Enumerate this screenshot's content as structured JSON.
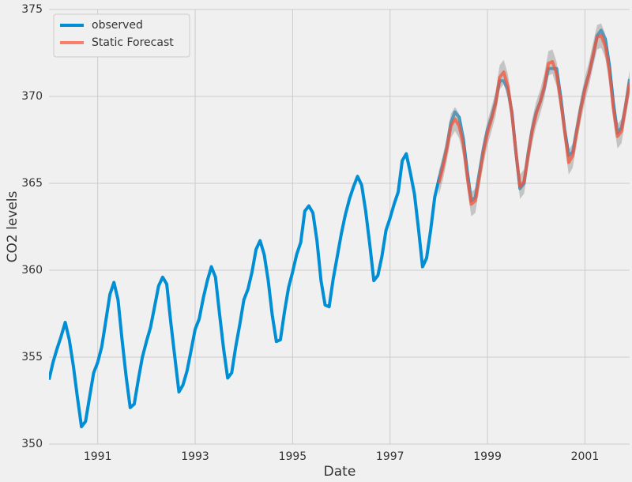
{
  "chart_data": {
    "type": "line",
    "xlabel": "Date",
    "ylabel": "CO2 levels",
    "x": [
      1990,
      1990.083,
      1990.167,
      1990.25,
      1990.333,
      1990.417,
      1990.5,
      1990.583,
      1990.667,
      1990.75,
      1990.833,
      1990.917,
      1991,
      1991.083,
      1991.167,
      1991.25,
      1991.333,
      1991.417,
      1991.5,
      1991.583,
      1991.667,
      1991.75,
      1991.833,
      1991.917,
      1992,
      1992.083,
      1992.167,
      1992.25,
      1992.333,
      1992.417,
      1992.5,
      1992.583,
      1992.667,
      1992.75,
      1992.833,
      1992.917,
      1993,
      1993.083,
      1993.167,
      1993.25,
      1993.333,
      1993.417,
      1993.5,
      1993.583,
      1993.667,
      1993.75,
      1993.833,
      1993.917,
      1994,
      1994.083,
      1994.167,
      1994.25,
      1994.333,
      1994.417,
      1994.5,
      1994.583,
      1994.667,
      1994.75,
      1994.833,
      1994.917,
      1995,
      1995.083,
      1995.167,
      1995.25,
      1995.333,
      1995.417,
      1995.5,
      1995.583,
      1995.667,
      1995.75,
      1995.833,
      1995.917,
      1996,
      1996.083,
      1996.167,
      1996.25,
      1996.333,
      1996.417,
      1996.5,
      1996.583,
      1996.667,
      1996.75,
      1996.833,
      1996.917,
      1997,
      1997.083,
      1997.167,
      1997.25,
      1997.333,
      1997.417,
      1997.5,
      1997.583,
      1997.667,
      1997.75,
      1997.833,
      1997.917,
      1998,
      1998.083,
      1998.167,
      1998.25,
      1998.333,
      1998.417,
      1998.5,
      1998.583,
      1998.667,
      1998.75,
      1998.833,
      1998.917,
      1999,
      1999.083,
      1999.167,
      1999.25,
      1999.333,
      1999.417,
      1999.5,
      1999.583,
      1999.667,
      1999.75,
      1999.833,
      1999.917,
      2000,
      2000.083,
      2000.167,
      2000.25,
      2000.333,
      2000.417,
      2000.5,
      2000.583,
      2000.667,
      2000.75,
      2000.833,
      2000.917,
      2001,
      2001.083,
      2001.167,
      2001.25,
      2001.333,
      2001.417,
      2001.5,
      2001.583,
      2001.667,
      2001.75,
      2001.833,
      2001.917
    ],
    "series": [
      {
        "name": "observed",
        "color": "#008fd5",
        "values": [
          353.7,
          354.7,
          355.5,
          356.2,
          357.0,
          356.0,
          354.5,
          352.7,
          351.0,
          351.3,
          352.7,
          354.1,
          354.7,
          355.6,
          357.1,
          358.6,
          359.3,
          358.3,
          356.0,
          353.9,
          352.1,
          352.3,
          353.7,
          355.0,
          355.9,
          356.7,
          357.9,
          359.1,
          359.6,
          359.2,
          357.0,
          355.0,
          353.0,
          353.4,
          354.2,
          355.4,
          356.6,
          357.2,
          358.4,
          359.4,
          360.2,
          359.6,
          357.5,
          355.5,
          353.8,
          354.1,
          355.6,
          356.9,
          358.3,
          358.9,
          359.9,
          361.2,
          361.7,
          360.9,
          359.4,
          357.4,
          355.9,
          356.0,
          357.6,
          359.0,
          359.9,
          360.9,
          361.6,
          363.4,
          363.7,
          363.3,
          361.7,
          359.4,
          358.0,
          357.9,
          359.5,
          360.8,
          362.1,
          363.2,
          364.1,
          364.8,
          365.4,
          364.9,
          363.4,
          361.5,
          359.4,
          359.7,
          360.8,
          362.3,
          363.0,
          363.8,
          364.5,
          366.3,
          366.7,
          365.6,
          364.4,
          362.4,
          360.2,
          360.7,
          362.3,
          364.2,
          365.2,
          366.1,
          367.1,
          368.5,
          369.1,
          368.8,
          367.6,
          365.7,
          364.0,
          364.2,
          365.6,
          367.0,
          368.1,
          368.8,
          369.7,
          370.9,
          370.9,
          370.4,
          369.1,
          366.8,
          364.7,
          365.0,
          366.7,
          368.1,
          369.1,
          369.7,
          370.5,
          371.6,
          371.6,
          371.6,
          370.0,
          368.1,
          366.6,
          366.8,
          368.1,
          369.4,
          370.5,
          371.3,
          372.3,
          373.5,
          373.8,
          373.3,
          371.8,
          369.6,
          367.9,
          368.2,
          369.4,
          371.0
        ]
      },
      {
        "name": "Static Forecast",
        "color": "#fc4f30",
        "ci_color": "#a0a0a0",
        "values": [
          null,
          null,
          null,
          null,
          null,
          null,
          null,
          null,
          null,
          null,
          null,
          null,
          null,
          null,
          null,
          null,
          null,
          null,
          null,
          null,
          null,
          null,
          null,
          null,
          null,
          null,
          null,
          null,
          null,
          null,
          null,
          null,
          null,
          null,
          null,
          null,
          null,
          null,
          null,
          null,
          null,
          null,
          null,
          null,
          null,
          null,
          null,
          null,
          null,
          null,
          null,
          null,
          null,
          null,
          null,
          null,
          null,
          null,
          null,
          null,
          null,
          null,
          null,
          null,
          null,
          null,
          null,
          null,
          null,
          null,
          null,
          null,
          null,
          null,
          null,
          null,
          null,
          null,
          null,
          null,
          null,
          null,
          null,
          null,
          null,
          null,
          null,
          null,
          null,
          null,
          null,
          null,
          null,
          null,
          null,
          null,
          365.0,
          365.9,
          367.0,
          368.3,
          368.7,
          368.3,
          367.3,
          365.4,
          363.8,
          364.0,
          365.4,
          366.8,
          367.9,
          368.7,
          369.6,
          371.1,
          371.4,
          370.6,
          369.0,
          366.8,
          364.8,
          365.1,
          366.6,
          368.0,
          369.0,
          369.7,
          370.6,
          371.9,
          372.0,
          371.3,
          369.8,
          368.0,
          366.2,
          366.6,
          368.0,
          369.3,
          370.4,
          371.3,
          372.4,
          373.4,
          373.5,
          372.9,
          371.5,
          369.3,
          367.7,
          368.0,
          369.4,
          370.8
        ],
        "ci_lower": [
          null,
          null,
          null,
          null,
          null,
          null,
          null,
          null,
          null,
          null,
          null,
          null,
          null,
          null,
          null,
          null,
          null,
          null,
          null,
          null,
          null,
          null,
          null,
          null,
          null,
          null,
          null,
          null,
          null,
          null,
          null,
          null,
          null,
          null,
          null,
          null,
          null,
          null,
          null,
          null,
          null,
          null,
          null,
          null,
          null,
          null,
          null,
          null,
          null,
          null,
          null,
          null,
          null,
          null,
          null,
          null,
          null,
          null,
          null,
          null,
          null,
          null,
          null,
          null,
          null,
          null,
          null,
          null,
          null,
          null,
          null,
          null,
          null,
          null,
          null,
          null,
          null,
          null,
          null,
          null,
          null,
          null,
          null,
          null,
          null,
          null,
          null,
          null,
          null,
          null,
          null,
          null,
          null,
          null,
          null,
          null,
          364.3,
          365.2,
          366.3,
          367.6,
          368.0,
          367.6,
          366.6,
          364.7,
          363.1,
          363.3,
          364.7,
          366.1,
          367.2,
          368.0,
          368.9,
          370.4,
          370.7,
          369.9,
          368.3,
          366.1,
          364.1,
          364.4,
          365.9,
          367.3,
          368.3,
          369.0,
          369.9,
          371.2,
          371.3,
          370.6,
          369.1,
          367.3,
          365.5,
          365.9,
          367.3,
          368.6,
          369.7,
          370.6,
          371.7,
          372.7,
          372.8,
          372.2,
          370.8,
          368.6,
          367.0,
          367.3,
          368.7,
          370.1
        ],
        "ci_upper": [
          null,
          null,
          null,
          null,
          null,
          null,
          null,
          null,
          null,
          null,
          null,
          null,
          null,
          null,
          null,
          null,
          null,
          null,
          null,
          null,
          null,
          null,
          null,
          null,
          null,
          null,
          null,
          null,
          null,
          null,
          null,
          null,
          null,
          null,
          null,
          null,
          null,
          null,
          null,
          null,
          null,
          null,
          null,
          null,
          null,
          null,
          null,
          null,
          null,
          null,
          null,
          null,
          null,
          null,
          null,
          null,
          null,
          null,
          null,
          null,
          null,
          null,
          null,
          null,
          null,
          null,
          null,
          null,
          null,
          null,
          null,
          null,
          null,
          null,
          null,
          null,
          null,
          null,
          null,
          null,
          null,
          null,
          null,
          null,
          null,
          null,
          null,
          null,
          null,
          null,
          null,
          null,
          null,
          null,
          null,
          null,
          365.7,
          366.6,
          367.7,
          369.0,
          369.4,
          369.0,
          368.0,
          366.1,
          364.5,
          364.7,
          366.1,
          367.5,
          368.6,
          369.4,
          370.3,
          371.8,
          372.1,
          371.3,
          369.7,
          367.5,
          365.5,
          365.8,
          367.3,
          368.7,
          369.7,
          370.4,
          371.3,
          372.6,
          372.7,
          372.0,
          370.5,
          368.7,
          366.9,
          367.3,
          368.7,
          370.0,
          371.1,
          372.0,
          373.1,
          374.1,
          374.2,
          373.6,
          372.2,
          370.0,
          368.4,
          368.7,
          370.1,
          371.5
        ]
      }
    ],
    "xlim": [
      1990,
      2001.917
    ],
    "ylim": [
      350,
      375
    ],
    "xticks": [
      1991,
      1993,
      1995,
      1997,
      1999,
      2001
    ],
    "yticks": [
      350,
      355,
      360,
      365,
      370,
      375
    ],
    "grid": true,
    "legend": "upper left"
  }
}
